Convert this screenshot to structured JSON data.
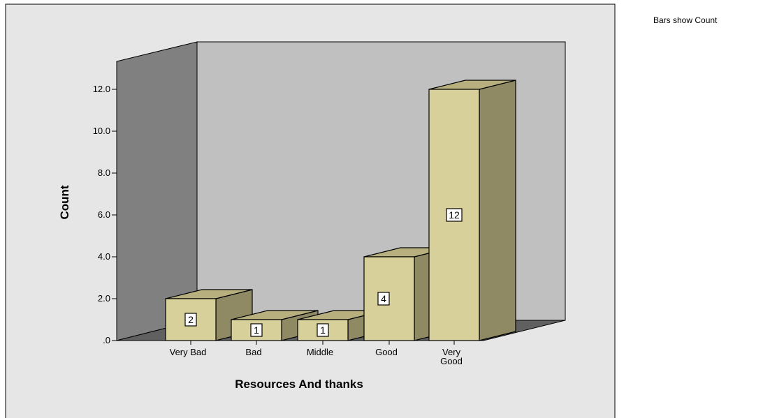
{
  "note": "Bars show Count",
  "chart_data": {
    "type": "bar",
    "categories": [
      "Very Bad",
      "Bad",
      "Middle",
      "Good",
      "Very Good"
    ],
    "category_label_lines": [
      [
        "Very Bad"
      ],
      [
        "Bad"
      ],
      [
        "Middle"
      ],
      [
        "Good"
      ],
      [
        "Very",
        "Good"
      ]
    ],
    "values": [
      2,
      1,
      1,
      4,
      12
    ],
    "data_labels": [
      "2",
      "1",
      "1",
      "4",
      "12"
    ],
    "xlabel": "Resources And thanks",
    "ylabel": "Count",
    "ylim": [
      0,
      13
    ],
    "yticks": [
      0,
      2,
      4,
      6,
      8,
      10,
      12
    ],
    "ytick_labels": [
      ".0",
      "2.0",
      "4.0",
      "6.0",
      "8.0",
      "10.0",
      "12.0"
    ],
    "style": "3d-bar",
    "legend": "none",
    "grid": false
  },
  "colors": {
    "panel_background": "#e6e6e6",
    "back_wall": "#c0c0c0",
    "left_wall": "#808080",
    "floor": "#606060",
    "bar_front": "#d8d09a",
    "bar_side": "#8f8a63",
    "bar_top": "#b7af7e",
    "outline": "#000000"
  }
}
